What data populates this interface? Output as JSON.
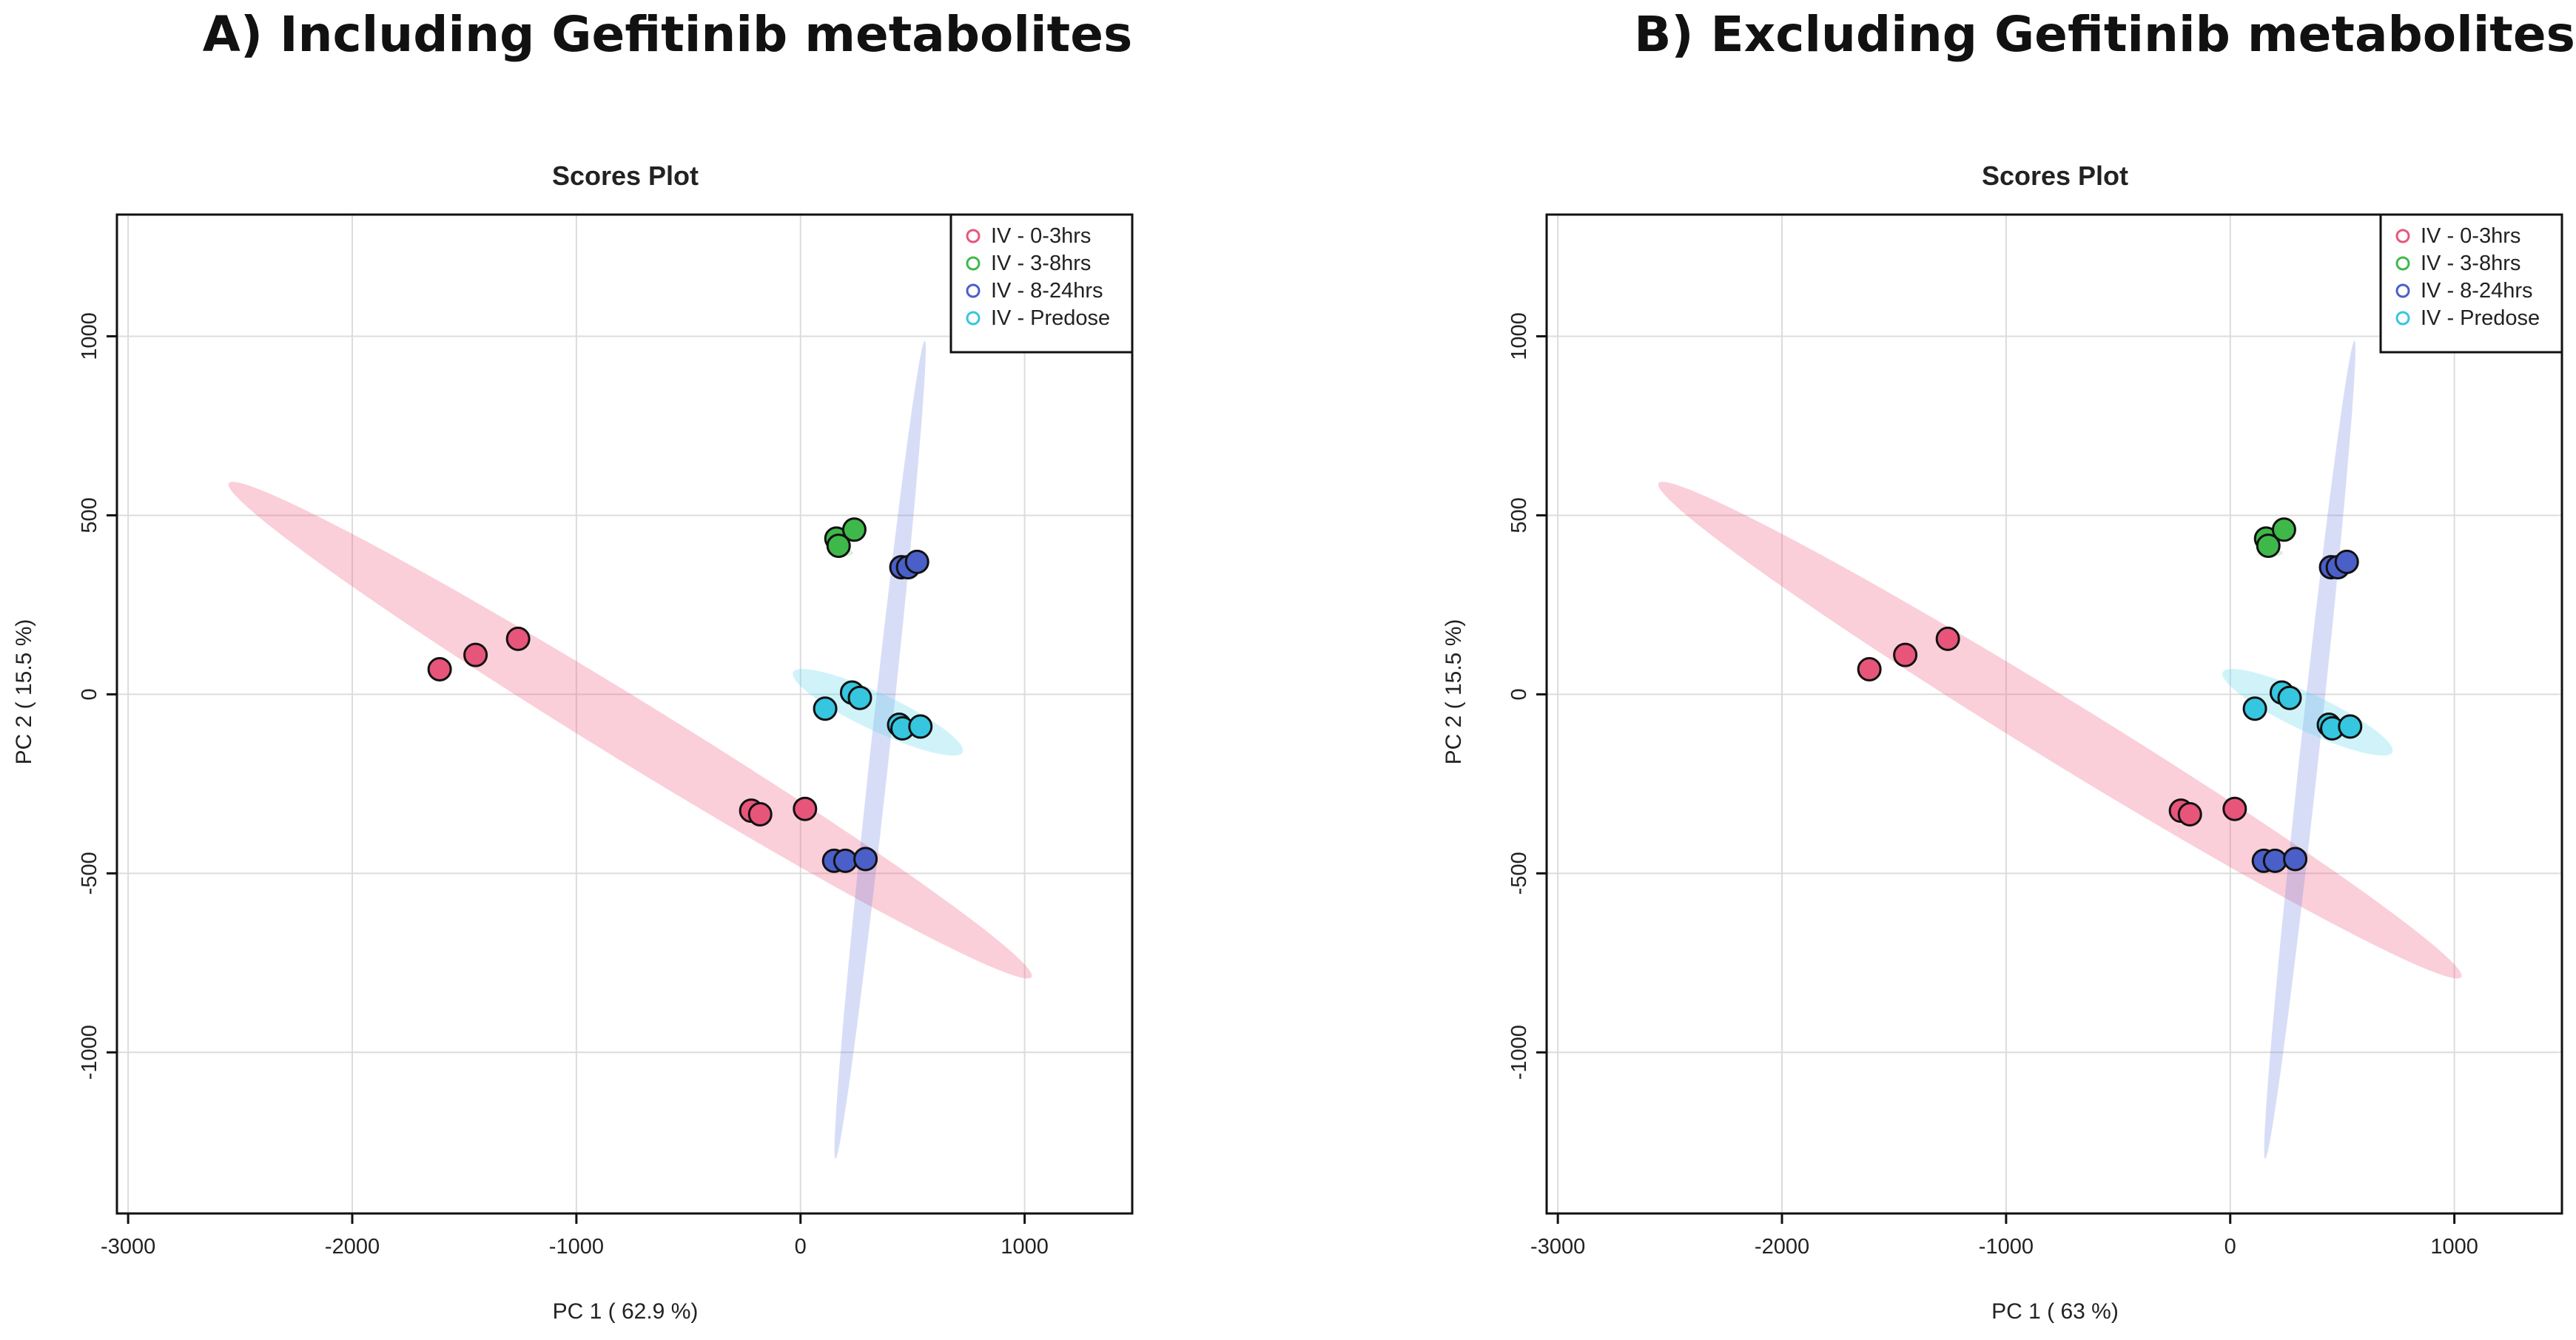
{
  "panels": [
    {
      "panel_title": "A) Including Gefitinib metabolites",
      "chart_data": {
        "type": "scatter",
        "title": "Scores Plot",
        "xlabel": "PC 1 ( 62.9 %)",
        "ylabel": "PC 2 ( 15.5 %)",
        "xlim": [
          -3050,
          1480
        ],
        "ylim": [
          -1450,
          1340
        ],
        "xticks": [
          -3000,
          -2000,
          -1000,
          0,
          1000
        ],
        "yticks": [
          -1000,
          -500,
          0,
          500,
          1000
        ],
        "xtick_labels": [
          "-3000",
          "-2000",
          "-1000",
          "0",
          "1000"
        ],
        "ytick_labels": [
          "-1000",
          "-500",
          "0",
          "500",
          "1000"
        ],
        "grid": true,
        "legend_position": "top-right",
        "series": [
          {
            "name": "IV - 0-3hrs",
            "color": "#e8557a",
            "fill": "rgba(238,95,130,0.30)",
            "x": [
              -1610,
              -1450,
              -1260,
              -220,
              -180,
              20
            ],
            "y": [
              70,
              110,
              155,
              -325,
              -335,
              -320
            ],
            "ellipse": {
              "cx": -760,
              "cy": -100,
              "a": 1920,
              "b": 95,
              "angle_deg": -21
            }
          },
          {
            "name": "IV - 3-8hrs",
            "color": "#3fb84a",
            "fill": "rgba(90,200,90,0.25)",
            "x": [
              160,
              170,
              240
            ],
            "y": [
              435,
              415,
              460
            ],
            "ellipse": {
              "cx": 180,
              "cy": 395,
              "a": 55,
              "b": 10,
              "angle_deg": 0
            }
          },
          {
            "name": "IV - 8-24hrs",
            "color": "#4a5fc8",
            "fill": "rgba(100,120,225,0.25)",
            "x": [
              450,
              480,
              520,
              150,
              200,
              290
            ],
            "y": [
              355,
              355,
              370,
              -465,
              -465,
              -460
            ],
            "ellipse": {
              "cx": 355,
              "cy": -155,
              "a": 1160,
              "b": 42,
              "angle_deg": 80.1
            }
          },
          {
            "name": "IV - Predose",
            "color": "#36c6e0",
            "fill": "rgba(100,215,240,0.30)",
            "x": [
              110,
              230,
              265,
              440,
              455,
              535
            ],
            "y": [
              -40,
              5,
              -10,
              -85,
              -95,
              -90
            ],
            "ellipse": {
              "cx": 345,
              "cy": -50,
              "a": 395,
              "b": 55,
              "angle_deg": -16
            }
          }
        ]
      }
    },
    {
      "panel_title": "B) Excluding Gefitinib metabolites",
      "chart_data": {
        "type": "scatter",
        "title": "Scores Plot",
        "xlabel": "PC 1 ( 63 %)",
        "ylabel": "PC 2 ( 15.5 %)",
        "xlim": [
          -3050,
          1480
        ],
        "ylim": [
          -1450,
          1340
        ],
        "xticks": [
          -3000,
          -2000,
          -1000,
          0,
          1000
        ],
        "yticks": [
          -1000,
          -500,
          0,
          500,
          1000
        ],
        "xtick_labels": [
          "-3000",
          "-2000",
          "-1000",
          "0",
          "1000"
        ],
        "ytick_labels": [
          "-1000",
          "-500",
          "0",
          "500",
          "1000"
        ],
        "grid": true,
        "legend_position": "top-right",
        "series": [
          {
            "name": "IV - 0-3hrs",
            "color": "#e8557a",
            "fill": "rgba(238,95,130,0.30)",
            "x": [
              -1610,
              -1450,
              -1260,
              -220,
              -180,
              20
            ],
            "y": [
              70,
              110,
              155,
              -325,
              -335,
              -320
            ],
            "ellipse": {
              "cx": -760,
              "cy": -100,
              "a": 1920,
              "b": 95,
              "angle_deg": -21
            }
          },
          {
            "name": "IV - 3-8hrs",
            "color": "#3fb84a",
            "fill": "rgba(90,200,90,0.25)",
            "x": [
              160,
              170,
              240
            ],
            "y": [
              435,
              415,
              460
            ],
            "ellipse": {
              "cx": 180,
              "cy": 395,
              "a": 55,
              "b": 10,
              "angle_deg": 0
            }
          },
          {
            "name": "IV - 8-24hrs",
            "color": "#4a5fc8",
            "fill": "rgba(100,120,225,0.25)",
            "x": [
              450,
              480,
              520,
              150,
              200,
              290
            ],
            "y": [
              355,
              355,
              370,
              -465,
              -465,
              -460
            ],
            "ellipse": {
              "cx": 355,
              "cy": -155,
              "a": 1160,
              "b": 42,
              "angle_deg": 80.1
            }
          },
          {
            "name": "IV - Predose",
            "color": "#36c6e0",
            "fill": "rgba(100,215,240,0.30)",
            "x": [
              110,
              230,
              265,
              440,
              455,
              535
            ],
            "y": [
              -40,
              5,
              -10,
              -85,
              -95,
              -90
            ],
            "ellipse": {
              "cx": 345,
              "cy": -50,
              "a": 395,
              "b": 55,
              "angle_deg": -16
            }
          }
        ]
      }
    }
  ]
}
